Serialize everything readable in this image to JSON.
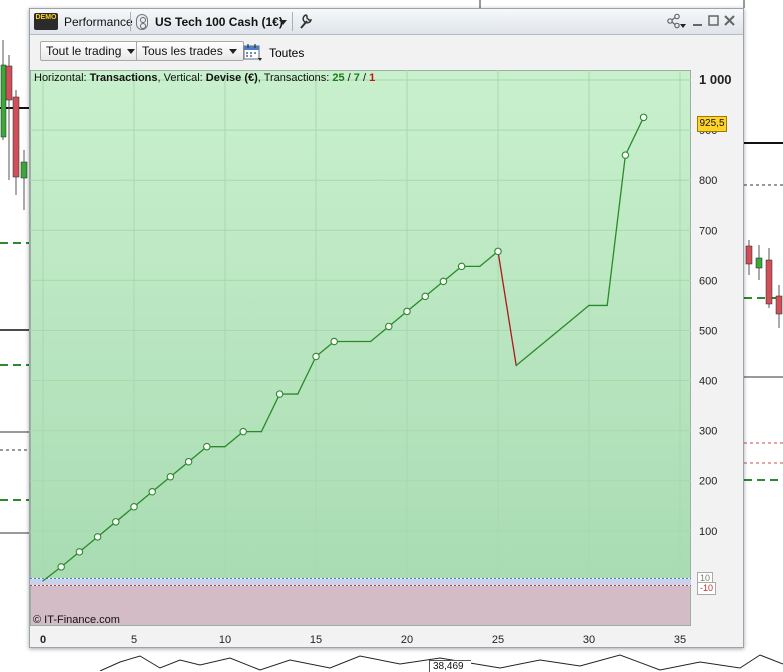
{
  "window": {
    "badge": "DEMO",
    "title": "Performance",
    "instrument": "US Tech 100 Cash (1€)"
  },
  "toolbar": {
    "trading_filter": "Tout le trading",
    "trades_filter": "Tous les trades",
    "period_label": "Toutes"
  },
  "chart_header": {
    "horizontal_label": "Horizontal: ",
    "horizontal_value": "Transactions",
    "vertical_label": ", Vertical: ",
    "vertical_value": "Devise (€)",
    "transactions_label": ", Transactions: ",
    "total": "25",
    "slash1": " / ",
    "winners": "7",
    "slash2": " / ",
    "losers": "1"
  },
  "copyright": "© IT-Finance.com",
  "last_value_label": "925,5",
  "mini_labels": {
    "upper": "10",
    "lower": "-10"
  },
  "background_label": "38,469",
  "colors": {
    "gain_line": "#2a8a2a",
    "loss_line": "#b01818",
    "gain_area": "#bfe9c3",
    "loss_area": "#d6b9c3",
    "badge": "#ffd32a"
  },
  "chart_data": {
    "type": "line",
    "x": [
      0,
      1,
      2,
      3,
      4,
      5,
      6,
      7,
      8,
      9,
      10,
      11,
      12,
      13,
      14,
      15,
      16,
      17,
      18,
      19,
      20,
      21,
      22,
      23,
      24,
      25,
      26,
      27,
      28,
      29,
      30,
      31,
      32,
      33
    ],
    "y": [
      0,
      28,
      58,
      88,
      118,
      148,
      178,
      208,
      238,
      268,
      268,
      298,
      298,
      373,
      373,
      448,
      478,
      478,
      478,
      508,
      538,
      568,
      598,
      628,
      628,
      658,
      430,
      460,
      490,
      520,
      550,
      550,
      850,
      925.5
    ],
    "markers": [
      1,
      2,
      3,
      4,
      5,
      6,
      7,
      8,
      9,
      11,
      13,
      15,
      16,
      19,
      20,
      21,
      22,
      23,
      25,
      32,
      33
    ],
    "loss_segment": [
      25,
      26
    ],
    "xlim": [
      0,
      35
    ],
    "ylim": [
      -90,
      1020
    ],
    "x_ticks": [
      0,
      5,
      10,
      15,
      20,
      25,
      30,
      35
    ],
    "y_ticks": [
      100,
      200,
      300,
      400,
      500,
      600,
      700,
      800,
      900,
      1000
    ],
    "y_tick_labels": [
      "100",
      "200",
      "300",
      "400",
      "500",
      "600",
      "700",
      "800",
      "900",
      "1 000"
    ],
    "grid": true
  }
}
